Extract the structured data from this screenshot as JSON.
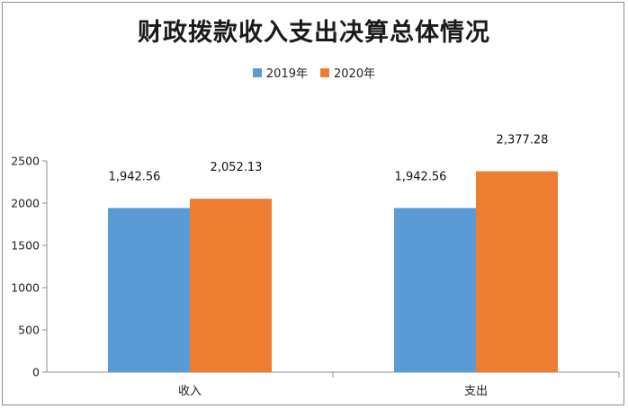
{
  "colors": {
    "series_2019": "#5b9bd5",
    "series_2020": "#ed7d31"
  },
  "chart_data": {
    "type": "bar",
    "title": "财政拨款收入支出决算总体情况",
    "categories": [
      "收入",
      "支出"
    ],
    "series": [
      {
        "name": "2019年",
        "values": [
          1942.56,
          1942.56
        ],
        "labels": [
          "1,942.56",
          "1,942.56"
        ]
      },
      {
        "name": "2020年",
        "values": [
          2052.13,
          2377.28
        ],
        "labels": [
          "2,052.13",
          "2,377.28"
        ]
      }
    ],
    "ylim": [
      0,
      2500
    ],
    "yticks": [
      "0",
      "500",
      "1000",
      "1500",
      "2000",
      "2500"
    ],
    "legend_position": "top",
    "grid": false
  }
}
